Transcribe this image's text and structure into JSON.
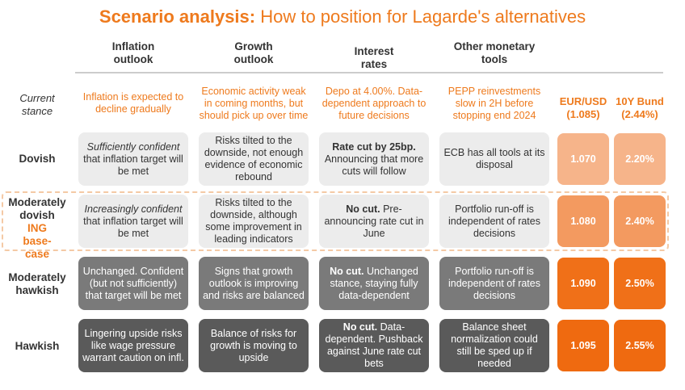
{
  "title": {
    "bold": "Scenario analysis:",
    "rest": " How to position for Lagarde's alternatives"
  },
  "columns": [
    {
      "line1": "Inflation",
      "line2": "outlook"
    },
    {
      "line1": "Growth",
      "line2": "outlook"
    },
    {
      "line1": "Interest",
      "line2": "rates"
    },
    {
      "line1": "Other monetary",
      "line2": "tools"
    }
  ],
  "current_stance": {
    "label_line1": "Current",
    "label_line2": "stance",
    "cells": [
      "Inflation is expected to decline gradually",
      "Economic activity weak in coming months, but should pick up over time",
      "Depo at 4.00%. Data-dependent approach to future decisions",
      "PEPP reinvestments slow in 2H before stopping end 2024"
    ],
    "fx_headers": [
      {
        "line1": "EUR/USD",
        "line2": "(1.085)"
      },
      {
        "line1": "10Y Bund",
        "line2": "(2.44%)"
      }
    ]
  },
  "rows": [
    {
      "label_line1": "Dovish",
      "label_line2": "",
      "label_ing": "",
      "inflation_italic": "Sufficiently confident",
      "inflation_rest": " that inflation target will be met",
      "growth": "Risks tilted to the downside, not enough evidence of economic rebound",
      "rates_bold": "Rate cut by 25bp.",
      "rates_rest": " Announcing that more cuts will follow",
      "tools": "ECB has all tools at its disposal",
      "eurusd": "1.070",
      "bund": "2.20%"
    },
    {
      "label_line1": "Moderately",
      "label_line2": "dovish",
      "label_ing": "ING base-case",
      "inflation_italic": "Increasingly confident",
      "inflation_rest": " that inflation target will be met",
      "growth": "Risks tilted to the downside, although some improvement in leading indicators",
      "rates_bold": "No cut.",
      "rates_rest": " Pre-announcing rate cut in June",
      "tools": "Portfolio run-off is independent of rates decisions",
      "eurusd": "1.080",
      "bund": "2.40%"
    },
    {
      "label_line1": "Moderately",
      "label_line2": "hawkish",
      "label_ing": "",
      "inflation_italic": "",
      "inflation_rest": "Unchanged. Confident (but not sufficiently) that target will be met",
      "growth": "Signs that growth outlook is improving and risks are balanced",
      "rates_bold": "No cut.",
      "rates_rest": " Unchanged stance, staying fully data-dependent",
      "tools": "Portfolio run-off is independent of rates decisions",
      "eurusd": "1.090",
      "bund": "2.50%"
    },
    {
      "label_line1": "Hawkish",
      "label_line2": "",
      "label_ing": "",
      "inflation_italic": "",
      "inflation_rest": "Lingering upside risks like wage pressure warrant caution on infl.",
      "growth": "Balance of risks for growth is moving to upside",
      "rates_bold": "No cut.",
      "rates_rest": " Data-dependent. Pushback against June rate cut bets",
      "tools": "Balance sheet normalization could still be sped up if needed",
      "eurusd": "1.095",
      "bund": "2.55%"
    }
  ]
}
